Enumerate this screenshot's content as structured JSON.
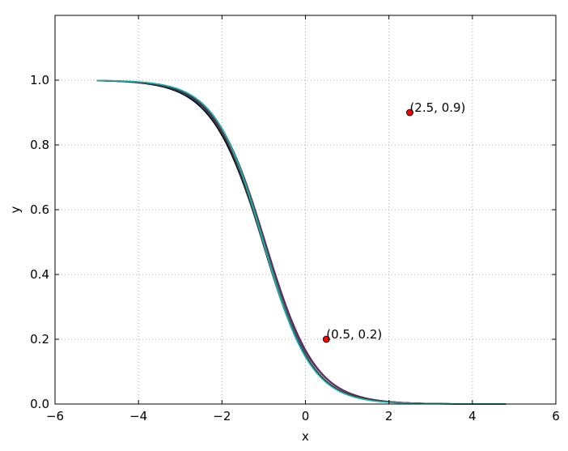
{
  "chart_data": {
    "type": "line",
    "title": "",
    "xlabel": "x",
    "ylabel": "y",
    "xlim": [
      -6,
      6
    ],
    "ylim": [
      0,
      1.2
    ],
    "xticks": [
      -6,
      -4,
      -2,
      0,
      2,
      4,
      6
    ],
    "xtick_labels": [
      "−6",
      "−4",
      "−2",
      "0",
      "2",
      "4",
      "6"
    ],
    "yticks": [
      0.0,
      0.2,
      0.4,
      0.6,
      0.8,
      1.0
    ],
    "ytick_labels": [
      "0.0",
      "0.2",
      "0.4",
      "0.6",
      "0.8",
      "1.0"
    ],
    "grid": true,
    "x_range": [
      -5,
      4.8
    ],
    "series": [
      {
        "center": -1.02,
        "scale": 0.62,
        "color": "#000000"
      },
      {
        "center": -1.0,
        "scale": 0.61,
        "color": "#1f3b99"
      },
      {
        "center": -0.98,
        "scale": 0.6,
        "color": "#7a2a6a"
      },
      {
        "center": -0.96,
        "scale": 0.6,
        "color": "#5b2d5a"
      },
      {
        "center": -0.99,
        "scale": 0.58,
        "color": "#2f6b6b"
      },
      {
        "center": -1.03,
        "scale": 0.59,
        "color": "#3a3a3a"
      },
      {
        "center": -1.01,
        "scale": 0.57,
        "color": "#20b2aa"
      }
    ],
    "points": [
      {
        "x": 0.5,
        "y": 0.2,
        "label": "(0.5, 0.2)",
        "color": "#ff0000"
      },
      {
        "x": 2.5,
        "y": 0.9,
        "label": "(2.5, 0.9)",
        "color": "#ff0000"
      }
    ]
  }
}
